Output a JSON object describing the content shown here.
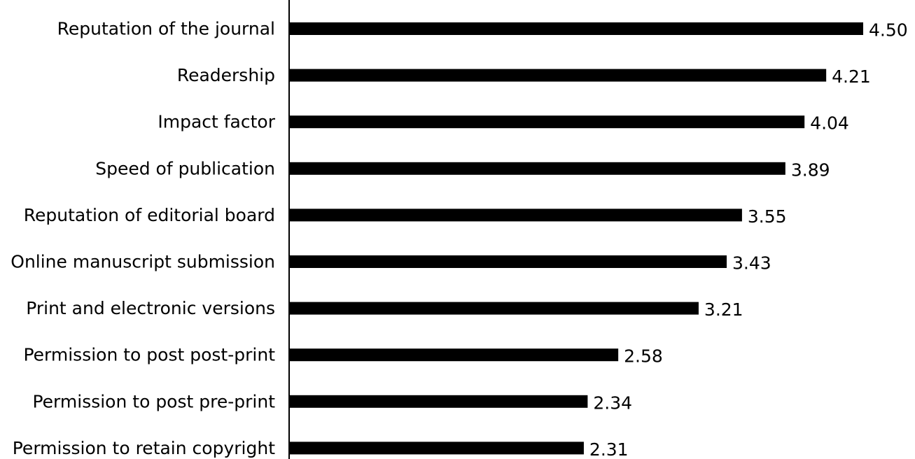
{
  "chart_data": {
    "type": "bar",
    "orientation": "horizontal",
    "title": "",
    "xlabel": "",
    "ylabel": "",
    "categories": [
      "Reputation of the journal",
      "Readership",
      "Impact factor",
      "Speed of publication",
      "Reputation of editorial board",
      "Online manuscript submission",
      "Print and electronic versions",
      "Permission to post post-print",
      "Permission to post pre-print",
      "Permission to retain copyright"
    ],
    "values": [
      4.5,
      4.21,
      4.04,
      3.89,
      3.55,
      3.43,
      3.21,
      2.58,
      2.34,
      2.31
    ],
    "value_labels": [
      "4.50",
      "4.21",
      "4.04",
      "3.89",
      "3.55",
      "3.43",
      "3.21",
      "2.58",
      "2.34",
      "2.31"
    ],
    "bar_color": "#000000",
    "grid": false,
    "legend": "none"
  }
}
